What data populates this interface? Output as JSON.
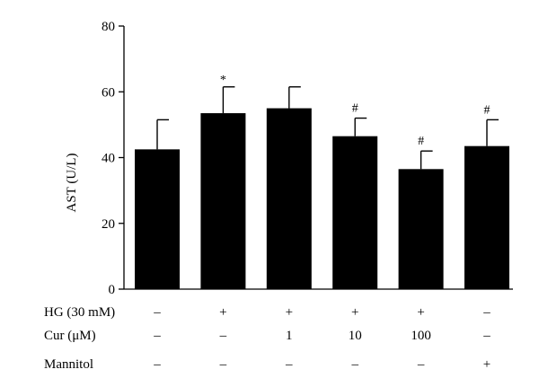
{
  "chart_data": {
    "type": "bar",
    "title": "",
    "xlabel": "",
    "ylabel": "AST (U/L)",
    "ylim": [
      0,
      80
    ],
    "yticks": [
      0,
      20,
      40,
      60,
      80
    ],
    "grid": false,
    "color": "#000000",
    "bars": [
      {
        "value": 42.5,
        "error": 9.0,
        "sig": ""
      },
      {
        "value": 53.5,
        "error": 8.0,
        "sig": "*"
      },
      {
        "value": 55.0,
        "error": 6.5,
        "sig": ""
      },
      {
        "value": 46.5,
        "error": 5.5,
        "sig": "#"
      },
      {
        "value": 36.5,
        "error": 5.5,
        "sig": "#"
      },
      {
        "value": 43.5,
        "error": 8.0,
        "sig": "#"
      }
    ],
    "conditions": [
      {
        "label": "HG (30 mM)",
        "values": [
          "–",
          "+",
          "+",
          "+",
          "+",
          "–"
        ]
      },
      {
        "label": "Cur (μM)",
        "values": [
          "–",
          "–",
          "1",
          "10",
          "100",
          "–"
        ]
      },
      {
        "label": "Mannitol",
        "values": [
          "–",
          "–",
          "–",
          "–",
          "–",
          "+"
        ]
      }
    ]
  }
}
